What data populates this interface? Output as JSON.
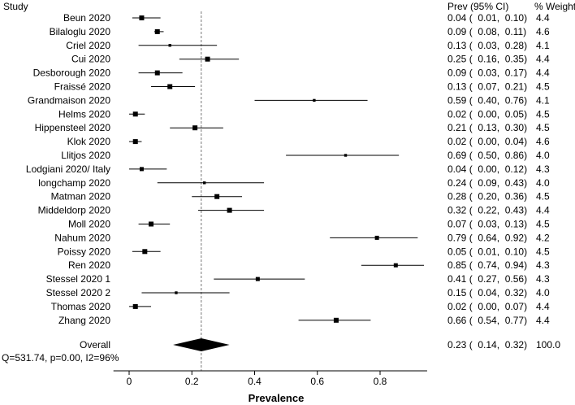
{
  "chart_data": {
    "type": "forest",
    "headers": {
      "study": "Study",
      "prev": "Prev (95% CI)",
      "weight": "% Weight"
    },
    "xlabel": "Prevalence",
    "xlim": [
      -0.05,
      0.95
    ],
    "xticks": [
      0,
      0.2,
      0.4,
      0.6,
      0.8
    ],
    "xtick_labels": [
      "0",
      "0.2",
      "0.4",
      "0.6",
      "0.8"
    ],
    "reference_line": 0.23,
    "studies": [
      {
        "name": "Beun 2020",
        "est": 0.04,
        "lo": 0.01,
        "hi": 0.1,
        "prev_text": "0.04 (  0.01,  0.10)",
        "weight": "4.4"
      },
      {
        "name": "Bilaloglu 2020",
        "est": 0.09,
        "lo": 0.08,
        "hi": 0.11,
        "prev_text": "0.09 (  0.08,  0.11)",
        "weight": "4.6"
      },
      {
        "name": "Criel 2020",
        "est": 0.13,
        "lo": 0.03,
        "hi": 0.28,
        "prev_text": "0.13 (  0.03,  0.28)",
        "weight": "4.1"
      },
      {
        "name": "Cui 2020",
        "est": 0.25,
        "lo": 0.16,
        "hi": 0.35,
        "prev_text": "0.25 (  0.16,  0.35)",
        "weight": "4.4"
      },
      {
        "name": "Desborough 2020",
        "est": 0.09,
        "lo": 0.03,
        "hi": 0.17,
        "prev_text": "0.09 (  0.03,  0.17)",
        "weight": "4.4"
      },
      {
        "name": "Fraissé 2020",
        "est": 0.13,
        "lo": 0.07,
        "hi": 0.21,
        "prev_text": "0.13 (  0.07,  0.21)",
        "weight": "4.5"
      },
      {
        "name": "Grandmaison 2020",
        "est": 0.59,
        "lo": 0.4,
        "hi": 0.76,
        "prev_text": "0.59 (  0.40,  0.76)",
        "weight": "4.1"
      },
      {
        "name": "Helms 2020",
        "est": 0.02,
        "lo": 0.0,
        "hi": 0.05,
        "prev_text": "0.02 (  0.00,  0.05)",
        "weight": "4.5"
      },
      {
        "name": "Hippensteel 2020",
        "est": 0.21,
        "lo": 0.13,
        "hi": 0.3,
        "prev_text": "0.21 (  0.13,  0.30)",
        "weight": "4.5"
      },
      {
        "name": "Klok 2020",
        "est": 0.02,
        "lo": 0.0,
        "hi": 0.04,
        "prev_text": "0.02 (  0.00,  0.04)",
        "weight": "4.6"
      },
      {
        "name": "Llitjos 2020",
        "est": 0.69,
        "lo": 0.5,
        "hi": 0.86,
        "prev_text": "0.69 (  0.50,  0.86)",
        "weight": "4.0"
      },
      {
        "name": "Lodgiani 2020/ Italy",
        "est": 0.04,
        "lo": 0.0,
        "hi": 0.12,
        "prev_text": "0.04 (  0.00,  0.12)",
        "weight": "4.3"
      },
      {
        "name": "longchamp 2020",
        "est": 0.24,
        "lo": 0.09,
        "hi": 0.43,
        "prev_text": "0.24 (  0.09,  0.43)",
        "weight": "4.0"
      },
      {
        "name": "Matman 2020",
        "est": 0.28,
        "lo": 0.2,
        "hi": 0.36,
        "prev_text": "0.28 (  0.20,  0.36)",
        "weight": "4.5"
      },
      {
        "name": "Middeldorp 2020",
        "est": 0.32,
        "lo": 0.22,
        "hi": 0.43,
        "prev_text": "0.32 (  0.22,  0.43)",
        "weight": "4.4"
      },
      {
        "name": "Moll 2020",
        "est": 0.07,
        "lo": 0.03,
        "hi": 0.13,
        "prev_text": "0.07 (  0.03,  0.13)",
        "weight": "4.5"
      },
      {
        "name": "Nahum 2020",
        "est": 0.79,
        "lo": 0.64,
        "hi": 0.92,
        "prev_text": "0.79 (  0.64,  0.92)",
        "weight": "4.2"
      },
      {
        "name": "Poissy 2020",
        "est": 0.05,
        "lo": 0.01,
        "hi": 0.1,
        "prev_text": "0.05 (  0.01,  0.10)",
        "weight": "4.5"
      },
      {
        "name": "Ren 2020",
        "est": 0.85,
        "lo": 0.74,
        "hi": 0.94,
        "prev_text": "0.85 (  0.74,  0.94)",
        "weight": "4.3"
      },
      {
        "name": "Stessel 2020 1",
        "est": 0.41,
        "lo": 0.27,
        "hi": 0.56,
        "prev_text": "0.41 (  0.27,  0.56)",
        "weight": "4.3"
      },
      {
        "name": "Stessel 2020 2",
        "est": 0.15,
        "lo": 0.04,
        "hi": 0.32,
        "prev_text": "0.15 (  0.04,  0.32)",
        "weight": "4.0"
      },
      {
        "name": "Thomas 2020",
        "est": 0.02,
        "lo": 0.0,
        "hi": 0.07,
        "prev_text": "0.02 (  0.00,  0.07)",
        "weight": "4.4"
      },
      {
        "name": "Zhang 2020",
        "est": 0.66,
        "lo": 0.54,
        "hi": 0.77,
        "prev_text": "0.66 (  0.54,  0.77)",
        "weight": "4.4"
      }
    ],
    "overall": {
      "name": "Overall",
      "est": 0.23,
      "lo": 0.14,
      "hi": 0.32,
      "prev_text": "0.23 (  0.14,  0.32)",
      "weight": "100.0"
    },
    "heterogeneity": "Q=531.74, p=0.00, I2=96%"
  }
}
